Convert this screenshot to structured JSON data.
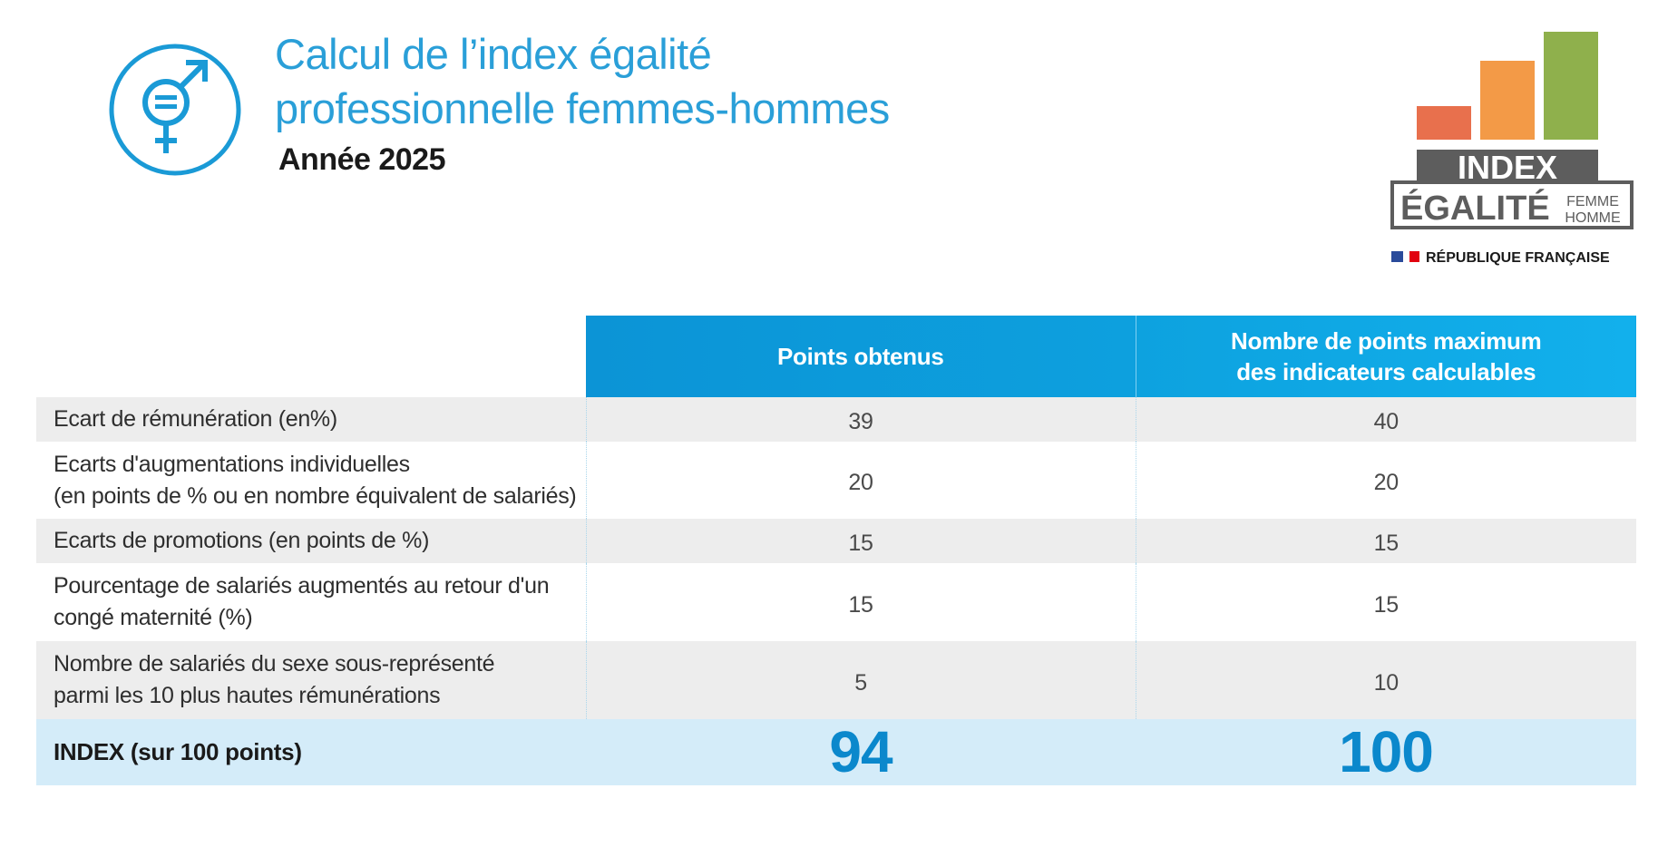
{
  "header": {
    "title_line1": "Calcul de l’index égalité",
    "title_line2": "professionnelle femmes-hommes",
    "year": "Année 2025",
    "icon": "gender-equality-icon"
  },
  "logo": {
    "index": "INDEX",
    "egalite": "ÉGALITÉ",
    "femme": "FEMME",
    "homme": "HOMME",
    "republique": "RÉPUBLIQUE FRANÇAISE",
    "bar_colors": [
      "#e8704d",
      "#f39a47",
      "#8fb04c"
    ],
    "dark_color": "#5d5d5d"
  },
  "table": {
    "headers": {
      "points": "Points obtenus",
      "max_line1": "Nombre de points maximum",
      "max_line2": "des indicateurs calculables"
    },
    "rows": [
      {
        "label_line1": "Ecart de rémunération (en%)",
        "label_line2": "",
        "points": "39",
        "max": "40"
      },
      {
        "label_line1": "Ecarts d'augmentations individuelles",
        "label_line2": "(en points de % ou en nombre équivalent de salariés)",
        "points": "20",
        "max": "20"
      },
      {
        "label_line1": "Ecarts de promotions (en points de %)",
        "label_line2": "",
        "points": "15",
        "max": "15"
      },
      {
        "label_line1": "Pourcentage de salariés augmentés au retour d'un",
        "label_line2": "congé maternité (%)",
        "points": "15",
        "max": "15"
      },
      {
        "label_line1": "Nombre de salariés du sexe sous-représenté",
        "label_line2": "parmi les 10 plus hautes rémunérations",
        "points": "5",
        "max": "10"
      }
    ],
    "total": {
      "label": "INDEX (sur 100 points)",
      "points": "94",
      "max": "100"
    }
  },
  "colors": {
    "accent": "#0d9ad9",
    "title": "#2a9fd8",
    "total_row_bg": "#d4ecf9",
    "total_value": "#0b88cc",
    "shaded_row": "#ededed"
  }
}
